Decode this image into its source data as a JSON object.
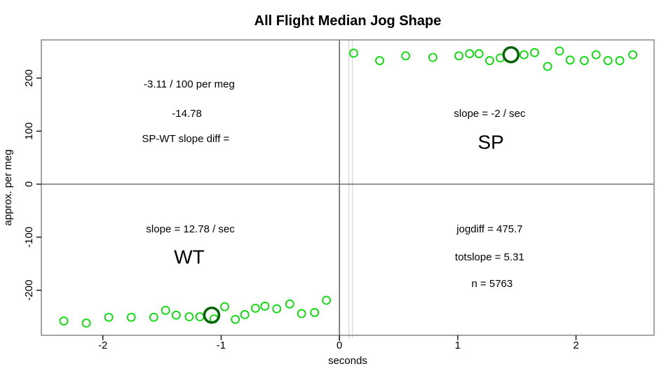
{
  "chart_data": {
    "type": "scatter",
    "title": "All Flight Median Jog Shape",
    "xlabel": "seconds",
    "ylabel": "approx. per meg",
    "xlim": [
      -2.52,
      2.66
    ],
    "ylim": [
      -285,
      272
    ],
    "x_ticks": [
      -2,
      -1,
      0,
      1,
      2
    ],
    "y_ticks": [
      -200,
      -100,
      0,
      100,
      200
    ],
    "grid": false,
    "legend": "none",
    "reference_lines": {
      "horizontal_zero": 0,
      "vertical_zero": 0,
      "vertical_light": [
        0.08,
        0.11
      ]
    },
    "series": [
      {
        "name": "SP median jog points",
        "marker": "open-circle",
        "color_key": "bright_green",
        "points": [
          [
            0.12,
            247
          ],
          [
            0.34,
            233
          ],
          [
            0.56,
            242
          ],
          [
            0.79,
            239
          ],
          [
            1.01,
            242
          ],
          [
            1.1,
            246
          ],
          [
            1.18,
            246
          ],
          [
            1.27,
            233
          ],
          [
            1.36,
            238
          ],
          [
            1.56,
            244
          ],
          [
            1.65,
            248
          ],
          [
            1.76,
            222
          ],
          [
            1.86,
            251
          ],
          [
            1.95,
            234
          ],
          [
            2.07,
            233
          ],
          [
            2.17,
            244
          ],
          [
            2.27,
            233
          ],
          [
            2.37,
            233
          ],
          [
            2.48,
            244
          ]
        ]
      },
      {
        "name": "WT median jog points",
        "marker": "open-circle",
        "color_key": "bright_green",
        "points": [
          [
            -2.33,
            -258
          ],
          [
            -2.14,
            -262
          ],
          [
            -1.95,
            -251
          ],
          [
            -1.76,
            -251
          ],
          [
            -1.57,
            -251
          ],
          [
            -1.47,
            -238
          ],
          [
            -1.38,
            -247
          ],
          [
            -1.27,
            -250
          ],
          [
            -1.18,
            -250
          ],
          [
            -1.06,
            -254
          ],
          [
            -0.97,
            -231
          ],
          [
            -0.88,
            -255
          ],
          [
            -0.8,
            -246
          ],
          [
            -0.71,
            -234
          ],
          [
            -0.63,
            -230
          ],
          [
            -0.53,
            -235
          ],
          [
            -0.42,
            -226
          ],
          [
            -0.32,
            -244
          ],
          [
            -0.21,
            -242
          ],
          [
            -0.11,
            -219
          ]
        ]
      },
      {
        "name": "SP highlighted point",
        "marker": "open-circle-bold",
        "color_key": "dark_green",
        "points": [
          [
            1.45,
            244
          ]
        ]
      },
      {
        "name": "WT highlighted point",
        "marker": "open-circle-bold",
        "color_key": "dark_green",
        "points": [
          [
            -1.08,
            -247
          ]
        ]
      }
    ],
    "annotations": [
      {
        "text": "-3.11 / 100 per meg",
        "x": -1.27,
        "y": 188,
        "size": "normal"
      },
      {
        "text": "-14.78",
        "x": -1.29,
        "y": 133,
        "size": "normal"
      },
      {
        "text": "SP-WT slope diff =",
        "x": -1.3,
        "y": 85,
        "size": "normal"
      },
      {
        "text": "slope = -2 / sec",
        "x": 1.27,
        "y": 133,
        "size": "normal"
      },
      {
        "text": "SP",
        "x": 1.28,
        "y": 79,
        "size": "large"
      },
      {
        "text": "slope = 12.78 / sec",
        "x": -1.26,
        "y": -85,
        "size": "normal"
      },
      {
        "text": "WT",
        "x": -1.27,
        "y": -137,
        "size": "large"
      },
      {
        "text": "jogdiff = 475.7",
        "x": 1.27,
        "y": -85,
        "size": "normal"
      },
      {
        "text": "totslope = 5.31",
        "x": 1.27,
        "y": -138,
        "size": "normal"
      },
      {
        "text": "n = 5763",
        "x": 1.29,
        "y": -188,
        "size": "normal"
      }
    ]
  },
  "colors": {
    "bright_green": "#00DE00",
    "dark_green": "#006400",
    "zero_line": "#666666",
    "light_line": "#d8d8d8",
    "box_border": "#878787",
    "tick": "#000000",
    "text": "#000000"
  }
}
